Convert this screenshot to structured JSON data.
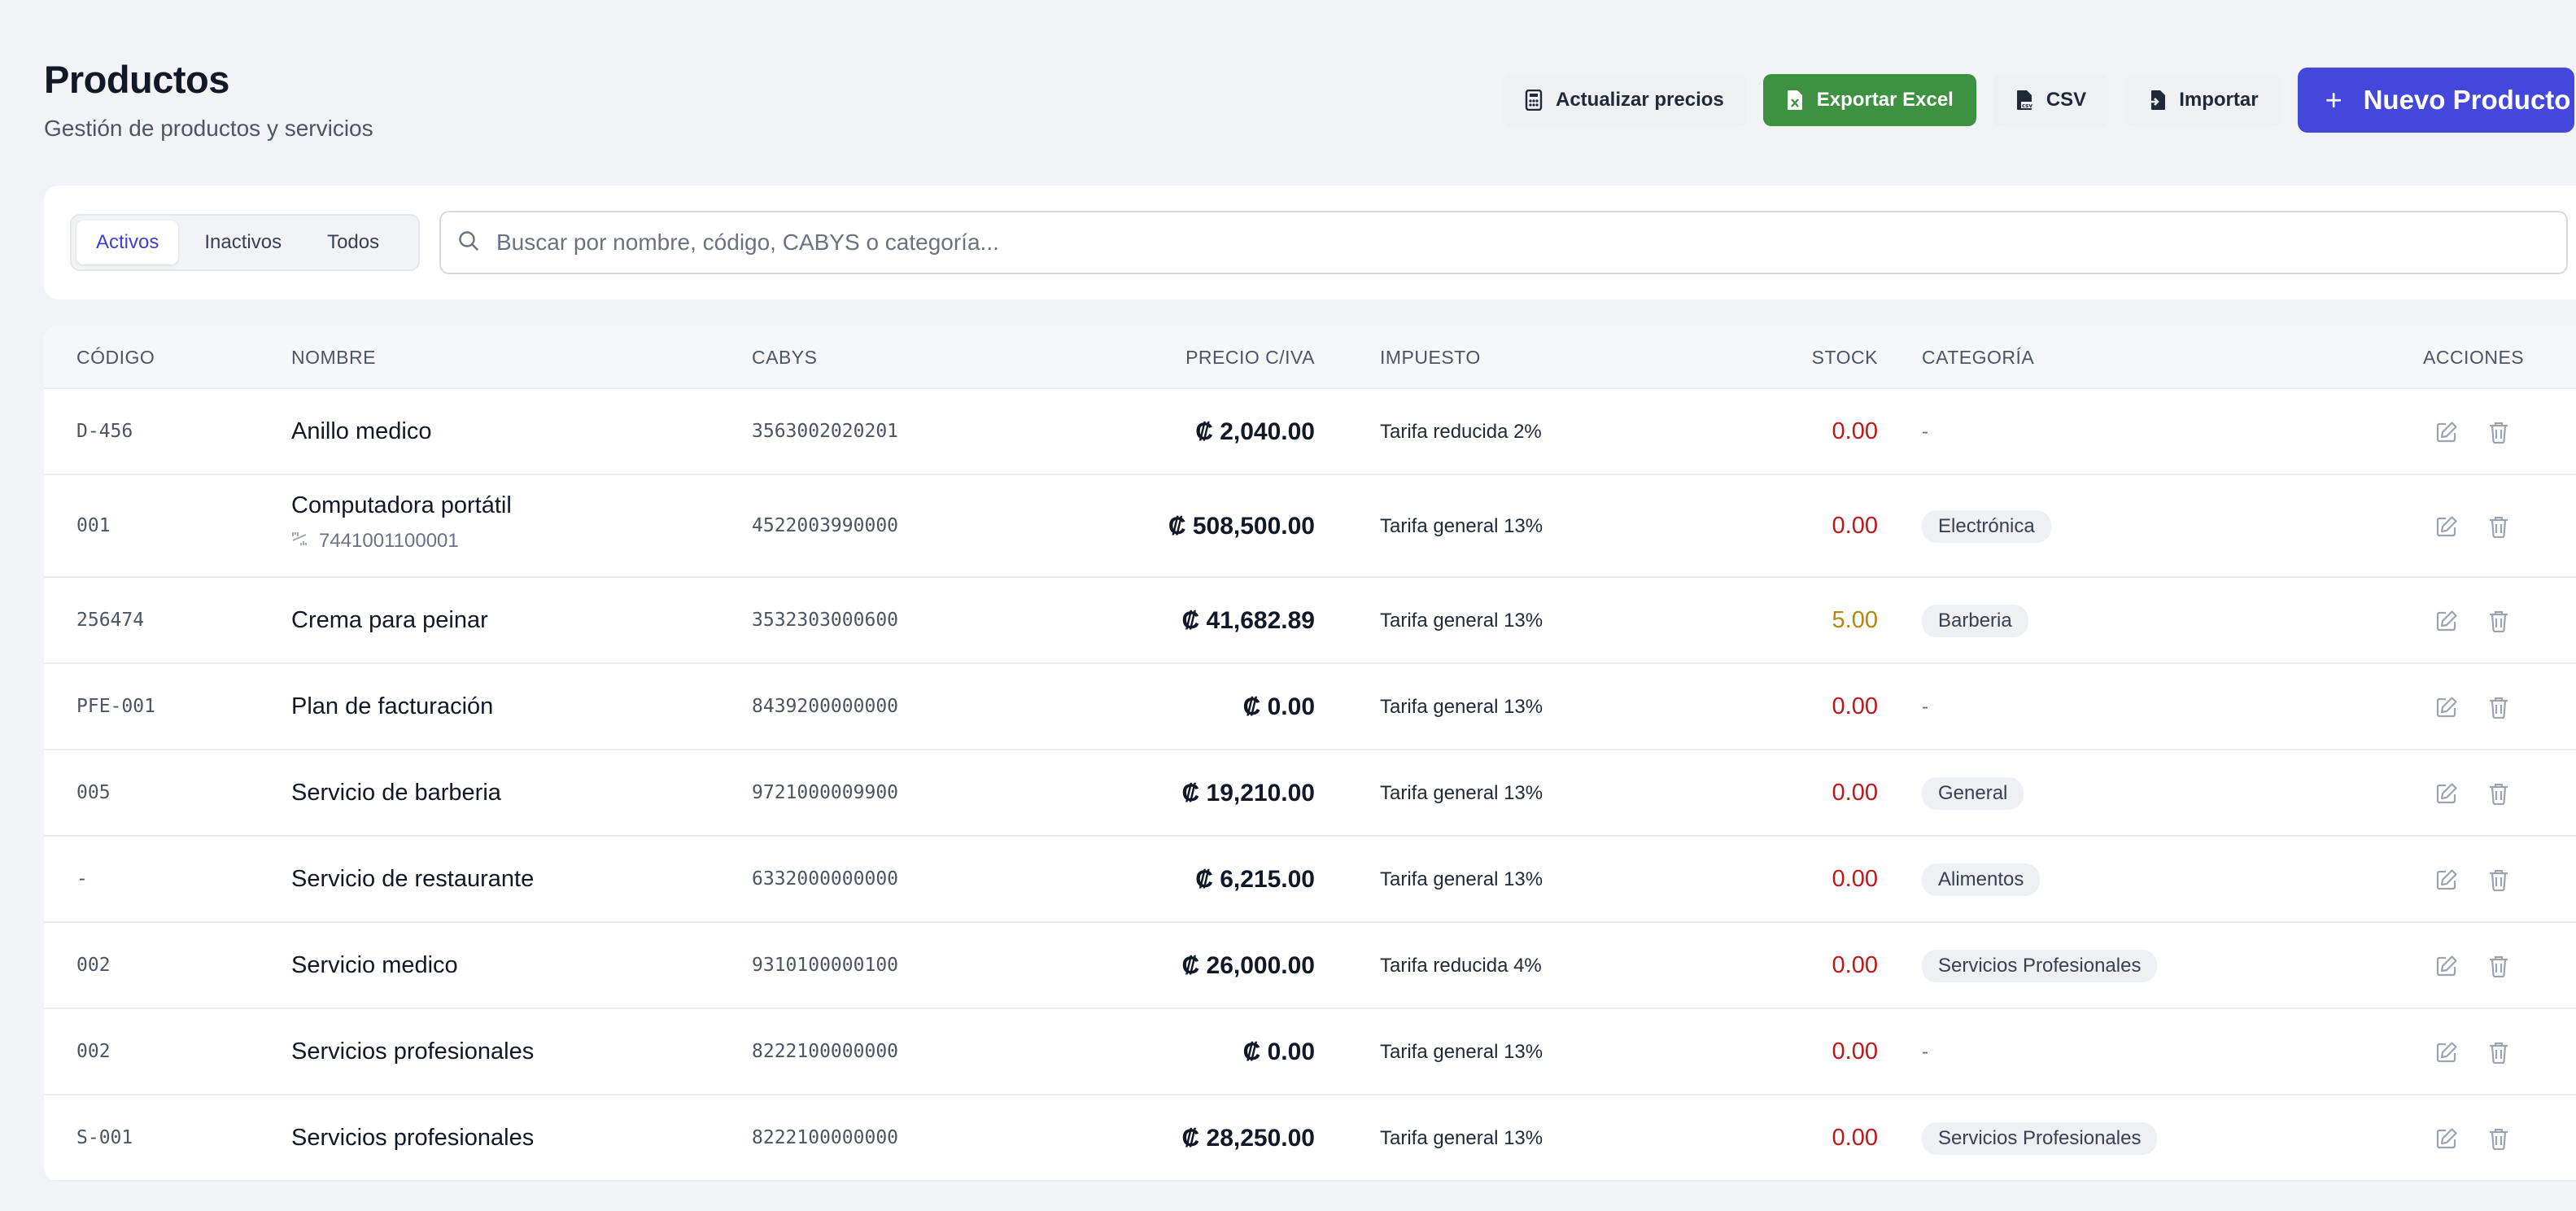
{
  "header": {
    "title": "Productos",
    "subtitle": "Gestión de productos y servicios"
  },
  "toolbar": {
    "update_prices": "Actualizar precios",
    "export_excel": "Exportar Excel",
    "csv": "CSV",
    "import": "Importar",
    "new_product": "Nuevo Producto",
    "colors": {
      "green": "#3f9142",
      "primary": "#4447db"
    }
  },
  "filters": {
    "tabs": [
      "Activos",
      "Inactivos",
      "Todos"
    ],
    "active_tab": "Activos",
    "search_placeholder": "Buscar por nombre, código, CABYS o categoría...",
    "search_value": ""
  },
  "table": {
    "columns": {
      "code": "CÓDIGO",
      "name": "NOMBRE",
      "cabys": "CABYS",
      "price": "PRECIO C/IVA",
      "tax": "IMPUESTO",
      "stock": "STOCK",
      "category": "CATEGORÍA",
      "actions": "ACCIONES"
    },
    "rows": [
      {
        "code": "D-456",
        "name": "Anillo medico",
        "barcode": "",
        "cabys": "3563002020201",
        "price": "₡ 2,040.00",
        "tax": "Tarifa reducida 2%",
        "stock": "0.00",
        "stock_level": "zero",
        "category": "-"
      },
      {
        "code": "001",
        "name": "Computadora portátil",
        "barcode": "7441001100001",
        "cabys": "4522003990000",
        "price": "₡ 508,500.00",
        "tax": "Tarifa general 13%",
        "stock": "0.00",
        "stock_level": "zero",
        "category": "Electrónica"
      },
      {
        "code": "256474",
        "name": "Crema para peinar",
        "barcode": "",
        "cabys": "3532303000600",
        "price": "₡ 41,682.89",
        "tax": "Tarifa general 13%",
        "stock": "5.00",
        "stock_level": "low",
        "category": "Barberia"
      },
      {
        "code": "PFE-001",
        "name": "Plan de facturación",
        "barcode": "",
        "cabys": "8439200000000",
        "price": "₡ 0.00",
        "tax": "Tarifa general 13%",
        "stock": "0.00",
        "stock_level": "zero",
        "category": "-"
      },
      {
        "code": "005",
        "name": "Servicio de barberia",
        "barcode": "",
        "cabys": "9721000009900",
        "price": "₡ 19,210.00",
        "tax": "Tarifa general 13%",
        "stock": "0.00",
        "stock_level": "zero",
        "category": "General"
      },
      {
        "code": "-",
        "name": "Servicio de restaurante",
        "barcode": "",
        "cabys": "6332000000000",
        "price": "₡ 6,215.00",
        "tax": "Tarifa general 13%",
        "stock": "0.00",
        "stock_level": "zero",
        "category": "Alimentos"
      },
      {
        "code": "002",
        "name": "Servicio medico",
        "barcode": "",
        "cabys": "9310100000100",
        "price": "₡ 26,000.00",
        "tax": "Tarifa reducida 4%",
        "stock": "0.00",
        "stock_level": "zero",
        "category": "Servicios Profesionales"
      },
      {
        "code": "002",
        "name": "Servicios profesionales",
        "barcode": "",
        "cabys": "8222100000000",
        "price": "₡ 0.00",
        "tax": "Tarifa general 13%",
        "stock": "0.00",
        "stock_level": "zero",
        "category": "-"
      },
      {
        "code": "S-001",
        "name": "Servicios profesionales",
        "barcode": "",
        "cabys": "8222100000000",
        "price": "₡ 28,250.00",
        "tax": "Tarifa general 13%",
        "stock": "0.00",
        "stock_level": "zero",
        "category": "Servicios Profesionales"
      }
    ]
  }
}
